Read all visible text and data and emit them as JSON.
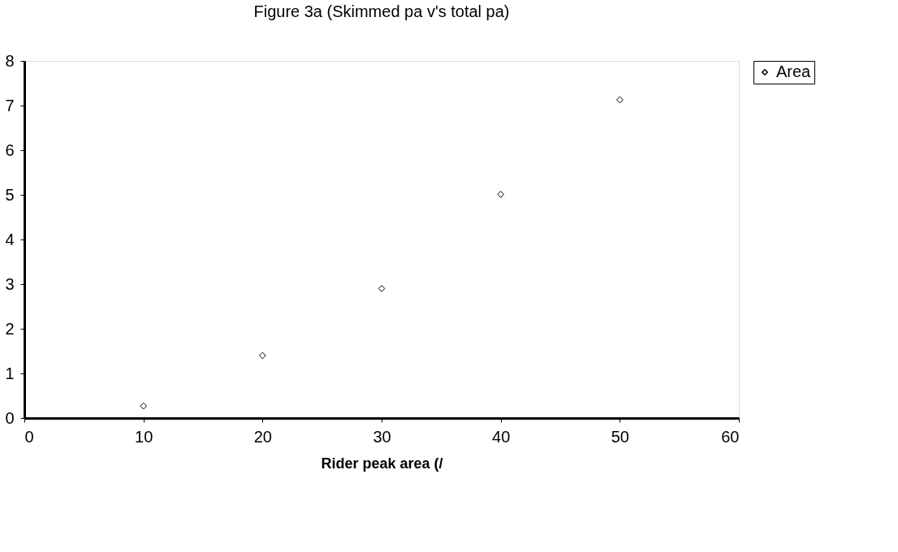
{
  "chart_data": {
    "type": "scatter",
    "title": "Figure 3a (Skimmed pa v's total pa)",
    "xlabel": "Rider peak area (/",
    "x": [
      10,
      20,
      30,
      40,
      50
    ],
    "series": [
      {
        "name": "Area",
        "color": "#000000",
        "values": [
          0.27,
          1.4,
          2.9,
          5.01,
          7.13
        ]
      }
    ],
    "xlim": [
      0,
      60
    ],
    "xticks": [
      0,
      10,
      20,
      30,
      40,
      50,
      60
    ],
    "ylim": [
      0,
      8
    ],
    "yticks": [
      0,
      1,
      2,
      3,
      4,
      5,
      6,
      7,
      8
    ],
    "grid": false,
    "legend": "right",
    "marker": "diamond"
  }
}
